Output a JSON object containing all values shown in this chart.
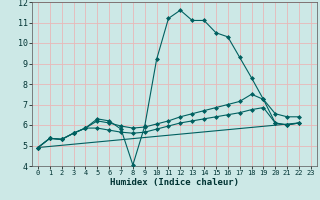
{
  "xlabel": "Humidex (Indice chaleur)",
  "xlim": [
    -0.5,
    23.5
  ],
  "ylim": [
    4,
    12
  ],
  "xticks": [
    0,
    1,
    2,
    3,
    4,
    5,
    6,
    7,
    8,
    9,
    10,
    11,
    12,
    13,
    14,
    15,
    16,
    17,
    18,
    19,
    20,
    21,
    22,
    23
  ],
  "yticks": [
    4,
    5,
    6,
    7,
    8,
    9,
    10,
    11,
    12
  ],
  "bg_color": "#cce8e6",
  "grid_color": "#aacfcd",
  "line_color": "#006060",
  "line1": {
    "x": [
      0,
      1,
      2,
      3,
      4,
      5,
      6,
      7,
      8,
      9,
      10,
      11,
      12,
      13,
      14,
      15,
      16,
      17,
      18,
      19,
      20,
      21,
      22
    ],
    "y": [
      4.9,
      5.35,
      5.3,
      5.6,
      5.85,
      6.3,
      6.2,
      5.8,
      4.05,
      5.95,
      9.2,
      11.2,
      11.6,
      11.1,
      11.1,
      10.5,
      10.3,
      9.3,
      8.3,
      7.25,
      6.1,
      6.0,
      6.1
    ]
  },
  "line2": {
    "x": [
      0,
      1,
      2,
      3,
      4,
      5,
      6,
      7,
      8,
      9,
      10,
      11,
      12,
      13,
      14,
      15,
      16,
      17,
      18,
      19,
      20,
      21,
      22
    ],
    "y": [
      4.9,
      5.35,
      5.3,
      5.6,
      5.85,
      6.2,
      6.1,
      5.95,
      5.85,
      5.9,
      6.05,
      6.2,
      6.4,
      6.55,
      6.7,
      6.85,
      7.0,
      7.15,
      7.5,
      7.25,
      6.55,
      6.4,
      6.4
    ]
  },
  "line3": {
    "x": [
      0,
      1,
      2,
      3,
      4,
      5,
      6,
      7,
      8,
      9,
      10,
      11,
      12,
      13,
      14,
      15,
      16,
      17,
      18,
      19,
      20,
      21,
      22
    ],
    "y": [
      4.9,
      5.35,
      5.3,
      5.6,
      5.85,
      5.85,
      5.75,
      5.65,
      5.6,
      5.65,
      5.8,
      5.95,
      6.1,
      6.2,
      6.3,
      6.4,
      6.5,
      6.6,
      6.75,
      6.85,
      6.1,
      6.0,
      6.1
    ]
  },
  "line4": {
    "x": [
      0,
      22
    ],
    "y": [
      4.9,
      6.1
    ]
  }
}
